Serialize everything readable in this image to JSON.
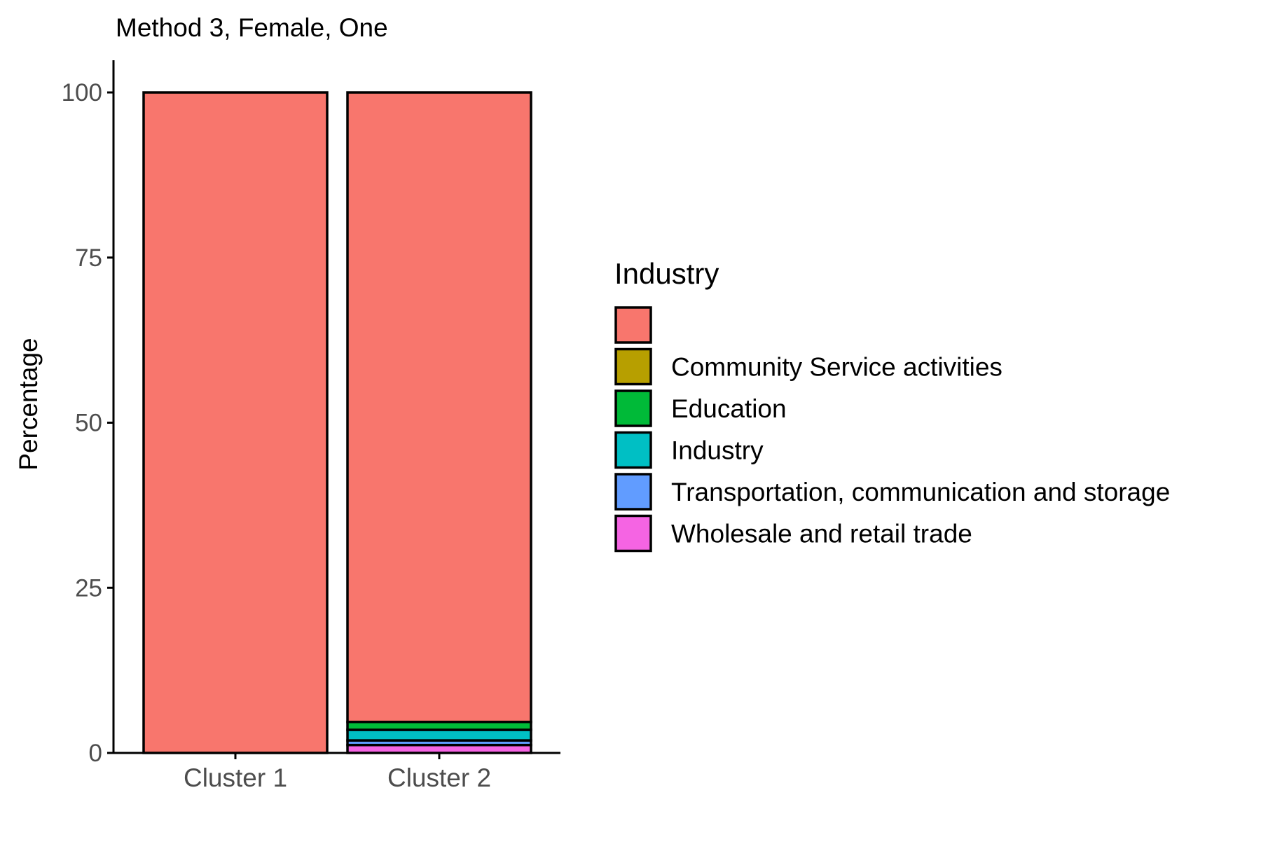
{
  "chart_data": {
    "type": "bar",
    "stacked": true,
    "title": "Method 3, Female, One",
    "xlabel": "",
    "ylabel": "Percentage",
    "ylim": [
      0,
      105
    ],
    "yticks": [
      0,
      25,
      50,
      75,
      100
    ],
    "ytick_labels": [
      "0",
      "25",
      "50",
      "75",
      "100"
    ],
    "categories": [
      "Cluster 1",
      "Cluster 2"
    ],
    "legend": {
      "title": "Industry",
      "placement": "right",
      "labels": [
        "",
        "Community Service activities",
        "Education",
        "Industry",
        "Transportation, communication and storage",
        "Wholesale and retail trade"
      ]
    },
    "series": [
      {
        "label": "",
        "color": "#F8766D",
        "values": [
          100,
          95.3
        ]
      },
      {
        "label": "Community Service activities",
        "color": "#B79F00",
        "values": [
          0,
          0.0
        ]
      },
      {
        "label": "Education",
        "color": "#00BA38",
        "values": [
          0,
          1.2
        ]
      },
      {
        "label": "Industry",
        "color": "#00BFC4",
        "values": [
          0,
          1.6
        ]
      },
      {
        "label": "Transportation, communication and storage",
        "color": "#619CFF",
        "values": [
          0,
          0.7
        ]
      },
      {
        "label": "Wholesale and retail trade",
        "color": "#F564E3",
        "values": [
          0,
          1.2
        ]
      }
    ],
    "grid": false
  }
}
